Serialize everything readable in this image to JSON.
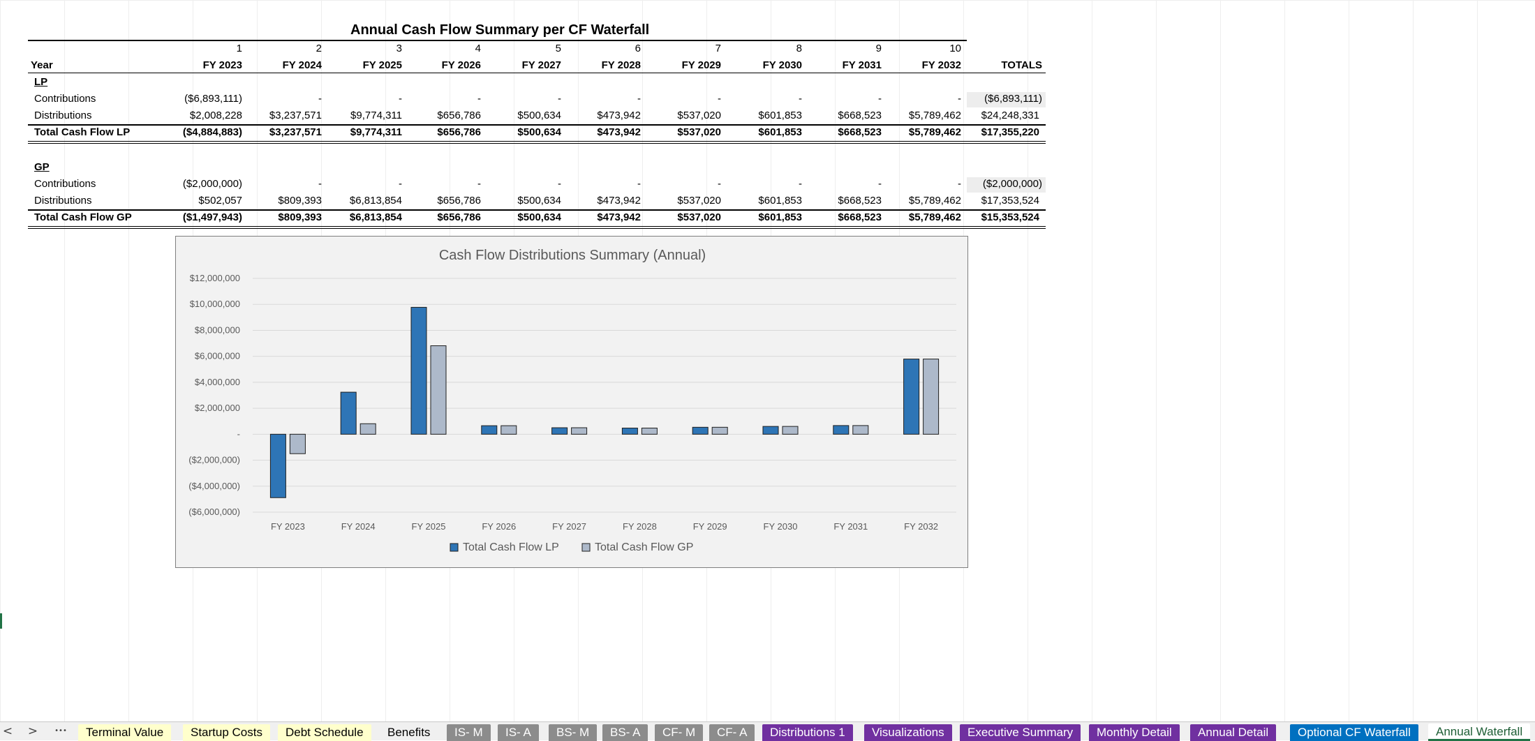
{
  "sheet": {
    "title": "Annual Cash Flow Summary per CF Waterfall",
    "period_numbers": [
      "1",
      "2",
      "3",
      "4",
      "5",
      "6",
      "7",
      "8",
      "9",
      "10"
    ],
    "year_label": "Year",
    "years": [
      "FY 2023",
      "FY 2024",
      "FY 2025",
      "FY 2026",
      "FY 2027",
      "FY 2028",
      "FY 2029",
      "FY 2030",
      "FY 2031",
      "FY 2032"
    ],
    "totals_label": "TOTALS",
    "lp": {
      "section": "LP",
      "contributions_label": "Contributions",
      "contributions": [
        "($6,893,111)",
        "-",
        "-",
        "-",
        "-",
        "-",
        "-",
        "-",
        "-",
        "-"
      ],
      "contributions_total": "($6,893,111)",
      "distributions_label": "Distributions",
      "distributions": [
        "$2,008,228",
        "$3,237,571",
        "$9,774,311",
        "$656,786",
        "$500,634",
        "$473,942",
        "$537,020",
        "$601,853",
        "$668,523",
        "$5,789,462"
      ],
      "distributions_total": "$24,248,331",
      "total_label": "Total Cash Flow LP",
      "total": [
        "($4,884,883)",
        "$3,237,571",
        "$9,774,311",
        "$656,786",
        "$500,634",
        "$473,942",
        "$537,020",
        "$601,853",
        "$668,523",
        "$5,789,462"
      ],
      "total_total": "$17,355,220"
    },
    "gp": {
      "section": "GP",
      "contributions_label": "Contributions",
      "contributions": [
        "($2,000,000)",
        "-",
        "-",
        "-",
        "-",
        "-",
        "-",
        "-",
        "-",
        "-"
      ],
      "contributions_total": "($2,000,000)",
      "distributions_label": "Distributions",
      "distributions": [
        "$502,057",
        "$809,393",
        "$6,813,854",
        "$656,786",
        "$500,634",
        "$473,942",
        "$537,020",
        "$601,853",
        "$668,523",
        "$5,789,462"
      ],
      "distributions_total": "$17,353,524",
      "total_label": "Total Cash Flow GP",
      "total": [
        "($1,497,943)",
        "$809,393",
        "$6,813,854",
        "$656,786",
        "$500,634",
        "$473,942",
        "$537,020",
        "$601,853",
        "$668,523",
        "$5,789,462"
      ],
      "total_total": "$15,353,524"
    }
  },
  "chart_data": {
    "type": "bar",
    "title": "Cash Flow Distributions Summary (Annual)",
    "categories": [
      "FY 2023",
      "FY 2024",
      "FY 2025",
      "FY 2026",
      "FY 2027",
      "FY 2028",
      "FY 2029",
      "FY 2030",
      "FY 2031",
      "FY 2032"
    ],
    "series": [
      {
        "name": "Total Cash Flow LP",
        "color": "#2e75b6",
        "values": [
          -4884883,
          3237571,
          9774311,
          656786,
          500634,
          473942,
          537020,
          601853,
          668523,
          5789462
        ]
      },
      {
        "name": "Total Cash Flow GP",
        "color": "#adb9ca",
        "values": [
          -1497943,
          809393,
          6813854,
          656786,
          500634,
          473942,
          537020,
          601853,
          668523,
          5789462
        ]
      }
    ],
    "ylim": [
      -6000000,
      12000000
    ],
    "y_ticks": [
      12000000,
      10000000,
      8000000,
      6000000,
      4000000,
      2000000,
      0,
      -2000000,
      -4000000,
      -6000000
    ],
    "y_tick_labels": [
      "$12,000,000",
      "$10,000,000",
      "$8,000,000",
      "$6,000,000",
      "$4,000,000",
      "$2,000,000",
      "-",
      "($2,000,000)",
      "($4,000,000)",
      "($6,000,000)"
    ],
    "grid": true,
    "legend": "bottom",
    "xlabel": "",
    "ylabel": ""
  },
  "tabs": {
    "nav_prev": "<",
    "nav_next": ">",
    "nav_more": "•••",
    "items": [
      {
        "label": "Terminal Value",
        "style": "yellow"
      },
      {
        "label": "Startup Costs",
        "style": "yellow"
      },
      {
        "label": "Debt Schedule",
        "style": "yellow"
      },
      {
        "label": "Benefits",
        "style": "plain"
      },
      {
        "label": "IS- M",
        "style": "gray"
      },
      {
        "label": "IS- A",
        "style": "gray"
      },
      {
        "label": "BS- M",
        "style": "gray"
      },
      {
        "label": "BS- A",
        "style": "gray"
      },
      {
        "label": "CF- M",
        "style": "gray"
      },
      {
        "label": "CF- A",
        "style": "gray"
      },
      {
        "label": "Distributions 1",
        "style": "purple"
      },
      {
        "label": "Visualizations",
        "style": "purple"
      },
      {
        "label": "Executive Summary",
        "style": "purple"
      },
      {
        "label": "Monthly Detail",
        "style": "purple"
      },
      {
        "label": "Annual Detail",
        "style": "purple"
      },
      {
        "label": "Optional CF Waterfall",
        "style": "blue"
      },
      {
        "label": "Annual Waterfall",
        "style": "active"
      }
    ]
  }
}
